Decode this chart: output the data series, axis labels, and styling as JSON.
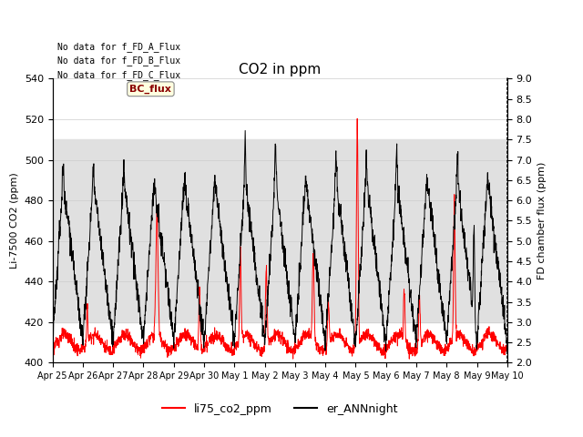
{
  "title": "CO2 in ppm",
  "ylabel_left": "Li-7500 CO2 (ppm)",
  "ylabel_right": "FD chamber flux (ppm)",
  "ylim_left": [
    400,
    540
  ],
  "ylim_right": [
    2.0,
    9.0
  ],
  "yticks_left": [
    400,
    420,
    440,
    460,
    480,
    500,
    520,
    540
  ],
  "yticks_right": [
    2.0,
    2.5,
    3.0,
    3.5,
    4.0,
    4.5,
    5.0,
    5.5,
    6.0,
    6.5,
    7.0,
    7.5,
    8.0,
    8.5,
    9.0
  ],
  "xtick_labels": [
    "Apr 25",
    "Apr 26",
    "Apr 27",
    "Apr 28",
    "Apr 29",
    "Apr 30",
    "May 1",
    "May 2",
    "May 3",
    "May 4",
    "May 5",
    "May 6",
    "May 7",
    "May 8",
    "May 9",
    "May 10"
  ],
  "legend_labels": [
    "li75_co2_ppm",
    "er_ANNnight"
  ],
  "legend_colors": [
    "red",
    "black"
  ],
  "annotation_lines": [
    "No data for f_FD_A_Flux",
    "No data for f_FD_B_Flux",
    "No data for f_FD_C_Flux"
  ],
  "bc_flux_label": "BC_flux",
  "shade_lower": 420,
  "shade_upper": 510,
  "background_color": "#ffffff",
  "shade_color": "#e0e0e0",
  "n_days": 15,
  "pts_per_day": 144
}
